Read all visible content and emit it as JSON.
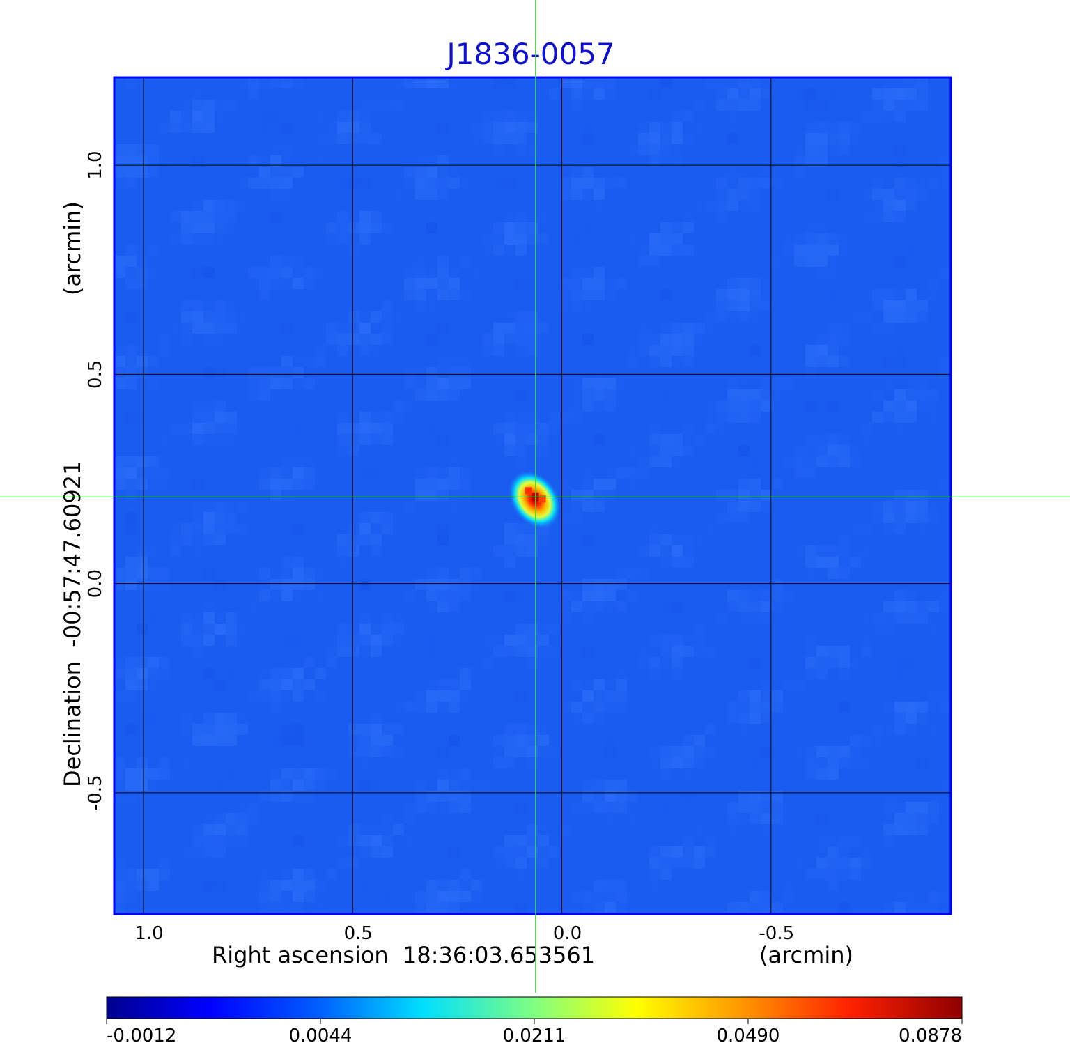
{
  "chart_data": {
    "type": "heatmap",
    "title": "J1836-0057",
    "xlabel": "Right ascension  18:36:03.653561",
    "xunit": "(arcmin)",
    "ylabel": "Declination  -00:57:47.60921",
    "yunit": "(arcmin)",
    "xlim": [
      1.07,
      -0.93
    ],
    "ylim": [
      -0.79,
      1.21
    ],
    "x_ticks": [
      1.0,
      0.5,
      0.0,
      -0.5
    ],
    "x_tick_labels": [
      "1.0",
      "0.5",
      "0.0",
      "-0.5"
    ],
    "y_ticks": [
      1.0,
      0.5,
      0.0,
      -0.5
    ],
    "y_tick_labels": [
      "1.0",
      "0.5",
      "0.0",
      "-0.5"
    ],
    "grid": true,
    "grid_color": "#000000",
    "crosshair": {
      "x": 0.063,
      "y": 0.207,
      "color": "#33dd33"
    },
    "source_peak": {
      "x": 0.065,
      "y": 0.207,
      "value": 0.0878
    },
    "colormap": "jet",
    "colorbar": {
      "min": -0.0012,
      "max": 0.0878,
      "tick_labels": [
        "-0.0012",
        "0.0044",
        "0.0211",
        "0.0490",
        "0.0878"
      ]
    },
    "background_color": "#1a5cf0",
    "title_color": "#1010d0"
  }
}
